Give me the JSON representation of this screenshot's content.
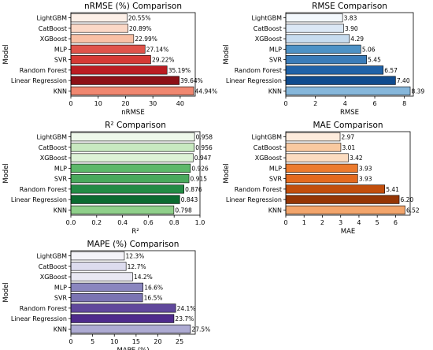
{
  "chart_data": [
    {
      "type": "bar",
      "orientation": "horizontal",
      "title": "nRMSE (%) Comparison",
      "xlabel": "nRMSE",
      "ylabel": "Model",
      "categories": [
        "LightGBM",
        "CatBoost",
        "XGBoost",
        "MLP",
        "SVR",
        "Random Forest",
        "Linear Regression",
        "KNN"
      ],
      "values": [
        20.55,
        20.89,
        22.99,
        27.14,
        29.22,
        35.19,
        39.64,
        44.94
      ],
      "value_labels": [
        "20.55%",
        "20.89%",
        "22.99%",
        "27.14%",
        "29.22%",
        "35.19%",
        "39.64%",
        "44.94%"
      ],
      "xlim": [
        0,
        45.5
      ],
      "xticks": [
        0,
        10,
        20,
        30,
        40
      ],
      "colors": [
        "#fdf0e8",
        "#fbd8c6",
        "#f9c0a5",
        "#e0534a",
        "#d63a35",
        "#bb1d22",
        "#8d1016",
        "#f08770"
      ]
    },
    {
      "type": "bar",
      "orientation": "horizontal",
      "title": "RMSE Comparison",
      "xlabel": "RMSE",
      "ylabel": "Model",
      "categories": [
        "LightGBM",
        "CatBoost",
        "XGBoost",
        "MLP",
        "SVR",
        "Random Forest",
        "Linear Regression",
        "KNN"
      ],
      "values": [
        3.83,
        3.9,
        4.29,
        5.06,
        5.45,
        6.57,
        7.4,
        8.39
      ],
      "value_labels": [
        "3.83",
        "3.90",
        "4.29",
        "5.06",
        "5.45",
        "6.57",
        "7.40",
        "8.39"
      ],
      "xlim": [
        0,
        8.6
      ],
      "xticks": [
        0,
        2,
        4,
        6,
        8
      ],
      "colors": [
        "#f3f8fd",
        "#dbe8f5",
        "#c7dcef",
        "#4d92c6",
        "#3a7cb9",
        "#1f62a8",
        "#0f4b8e",
        "#86b7db"
      ]
    },
    {
      "type": "bar",
      "orientation": "horizontal",
      "title": "R² Comparison",
      "xlabel": "R²",
      "ylabel": "Model",
      "categories": [
        "LightGBM",
        "CatBoost",
        "XGBoost",
        "MLP",
        "SVR",
        "Random Forest",
        "Linear Regression",
        "KNN"
      ],
      "values": [
        0.958,
        0.956,
        0.947,
        0.926,
        0.915,
        0.876,
        0.843,
        0.798
      ],
      "value_labels": [
        "0.958",
        "0.956",
        "0.947",
        "0.926",
        "0.915",
        "0.876",
        "0.843",
        "0.798"
      ],
      "xlim": [
        0,
        1.0
      ],
      "xticks": [
        0.0,
        0.2,
        0.4,
        0.6,
        0.8,
        1.0
      ],
      "xtick_labels": [
        "0.0",
        "0.2",
        "0.4",
        "0.6",
        "0.8",
        "1.0"
      ],
      "colors": [
        "#eef8ea",
        "#c8e9c0",
        "#ddf2d6",
        "#5db86a",
        "#4aa95d",
        "#238b45",
        "#0b6b30",
        "#8fd08a"
      ]
    },
    {
      "type": "bar",
      "orientation": "horizontal",
      "title": "MAE Comparison",
      "xlabel": "MAE",
      "ylabel": "Model",
      "categories": [
        "LightGBM",
        "CatBoost",
        "XGBoost",
        "MLP",
        "SVR",
        "Random Forest",
        "Linear Regression",
        "KNN"
      ],
      "values": [
        2.97,
        3.01,
        3.42,
        3.93,
        3.93,
        5.41,
        6.2,
        6.52
      ],
      "value_labels": [
        "2.97",
        "3.01",
        "3.42",
        "3.93",
        "3.93",
        "5.41",
        "6.20",
        "6.52"
      ],
      "xlim": [
        0,
        6.8
      ],
      "xticks": [
        0,
        1,
        2,
        3,
        4,
        5,
        6
      ],
      "colors": [
        "#fdebdc",
        "#f9c9a0",
        "#fcdcc0",
        "#ec7b2e",
        "#e36a1f",
        "#c24e0c",
        "#953605",
        "#f3a56b"
      ]
    },
    {
      "type": "bar",
      "orientation": "horizontal",
      "title": "MAPE (%) Comparison",
      "xlabel": "MAPE (%)",
      "ylabel": "Model",
      "categories": [
        "LightGBM",
        "CatBoost",
        "XGBoost",
        "MLP",
        "SVR",
        "Random Forest",
        "Linear Regression",
        "KNN"
      ],
      "values": [
        12.3,
        12.7,
        14.2,
        16.6,
        16.5,
        24.1,
        23.7,
        27.5
      ],
      "value_labels": [
        "12.3%",
        "12.7%",
        "14.2%",
        "16.6%",
        "16.5%",
        "24.1%",
        "23.7%",
        "27.5%"
      ],
      "xlim": [
        0,
        28.6
      ],
      "xticks": [
        0,
        5,
        10,
        15,
        20,
        25
      ],
      "colors": [
        "#f4f3f9",
        "#dddcee",
        "#e9e8f3",
        "#8a86bf",
        "#7b74b3",
        "#60489c",
        "#4e2a8c",
        "#aeabd3"
      ]
    }
  ]
}
